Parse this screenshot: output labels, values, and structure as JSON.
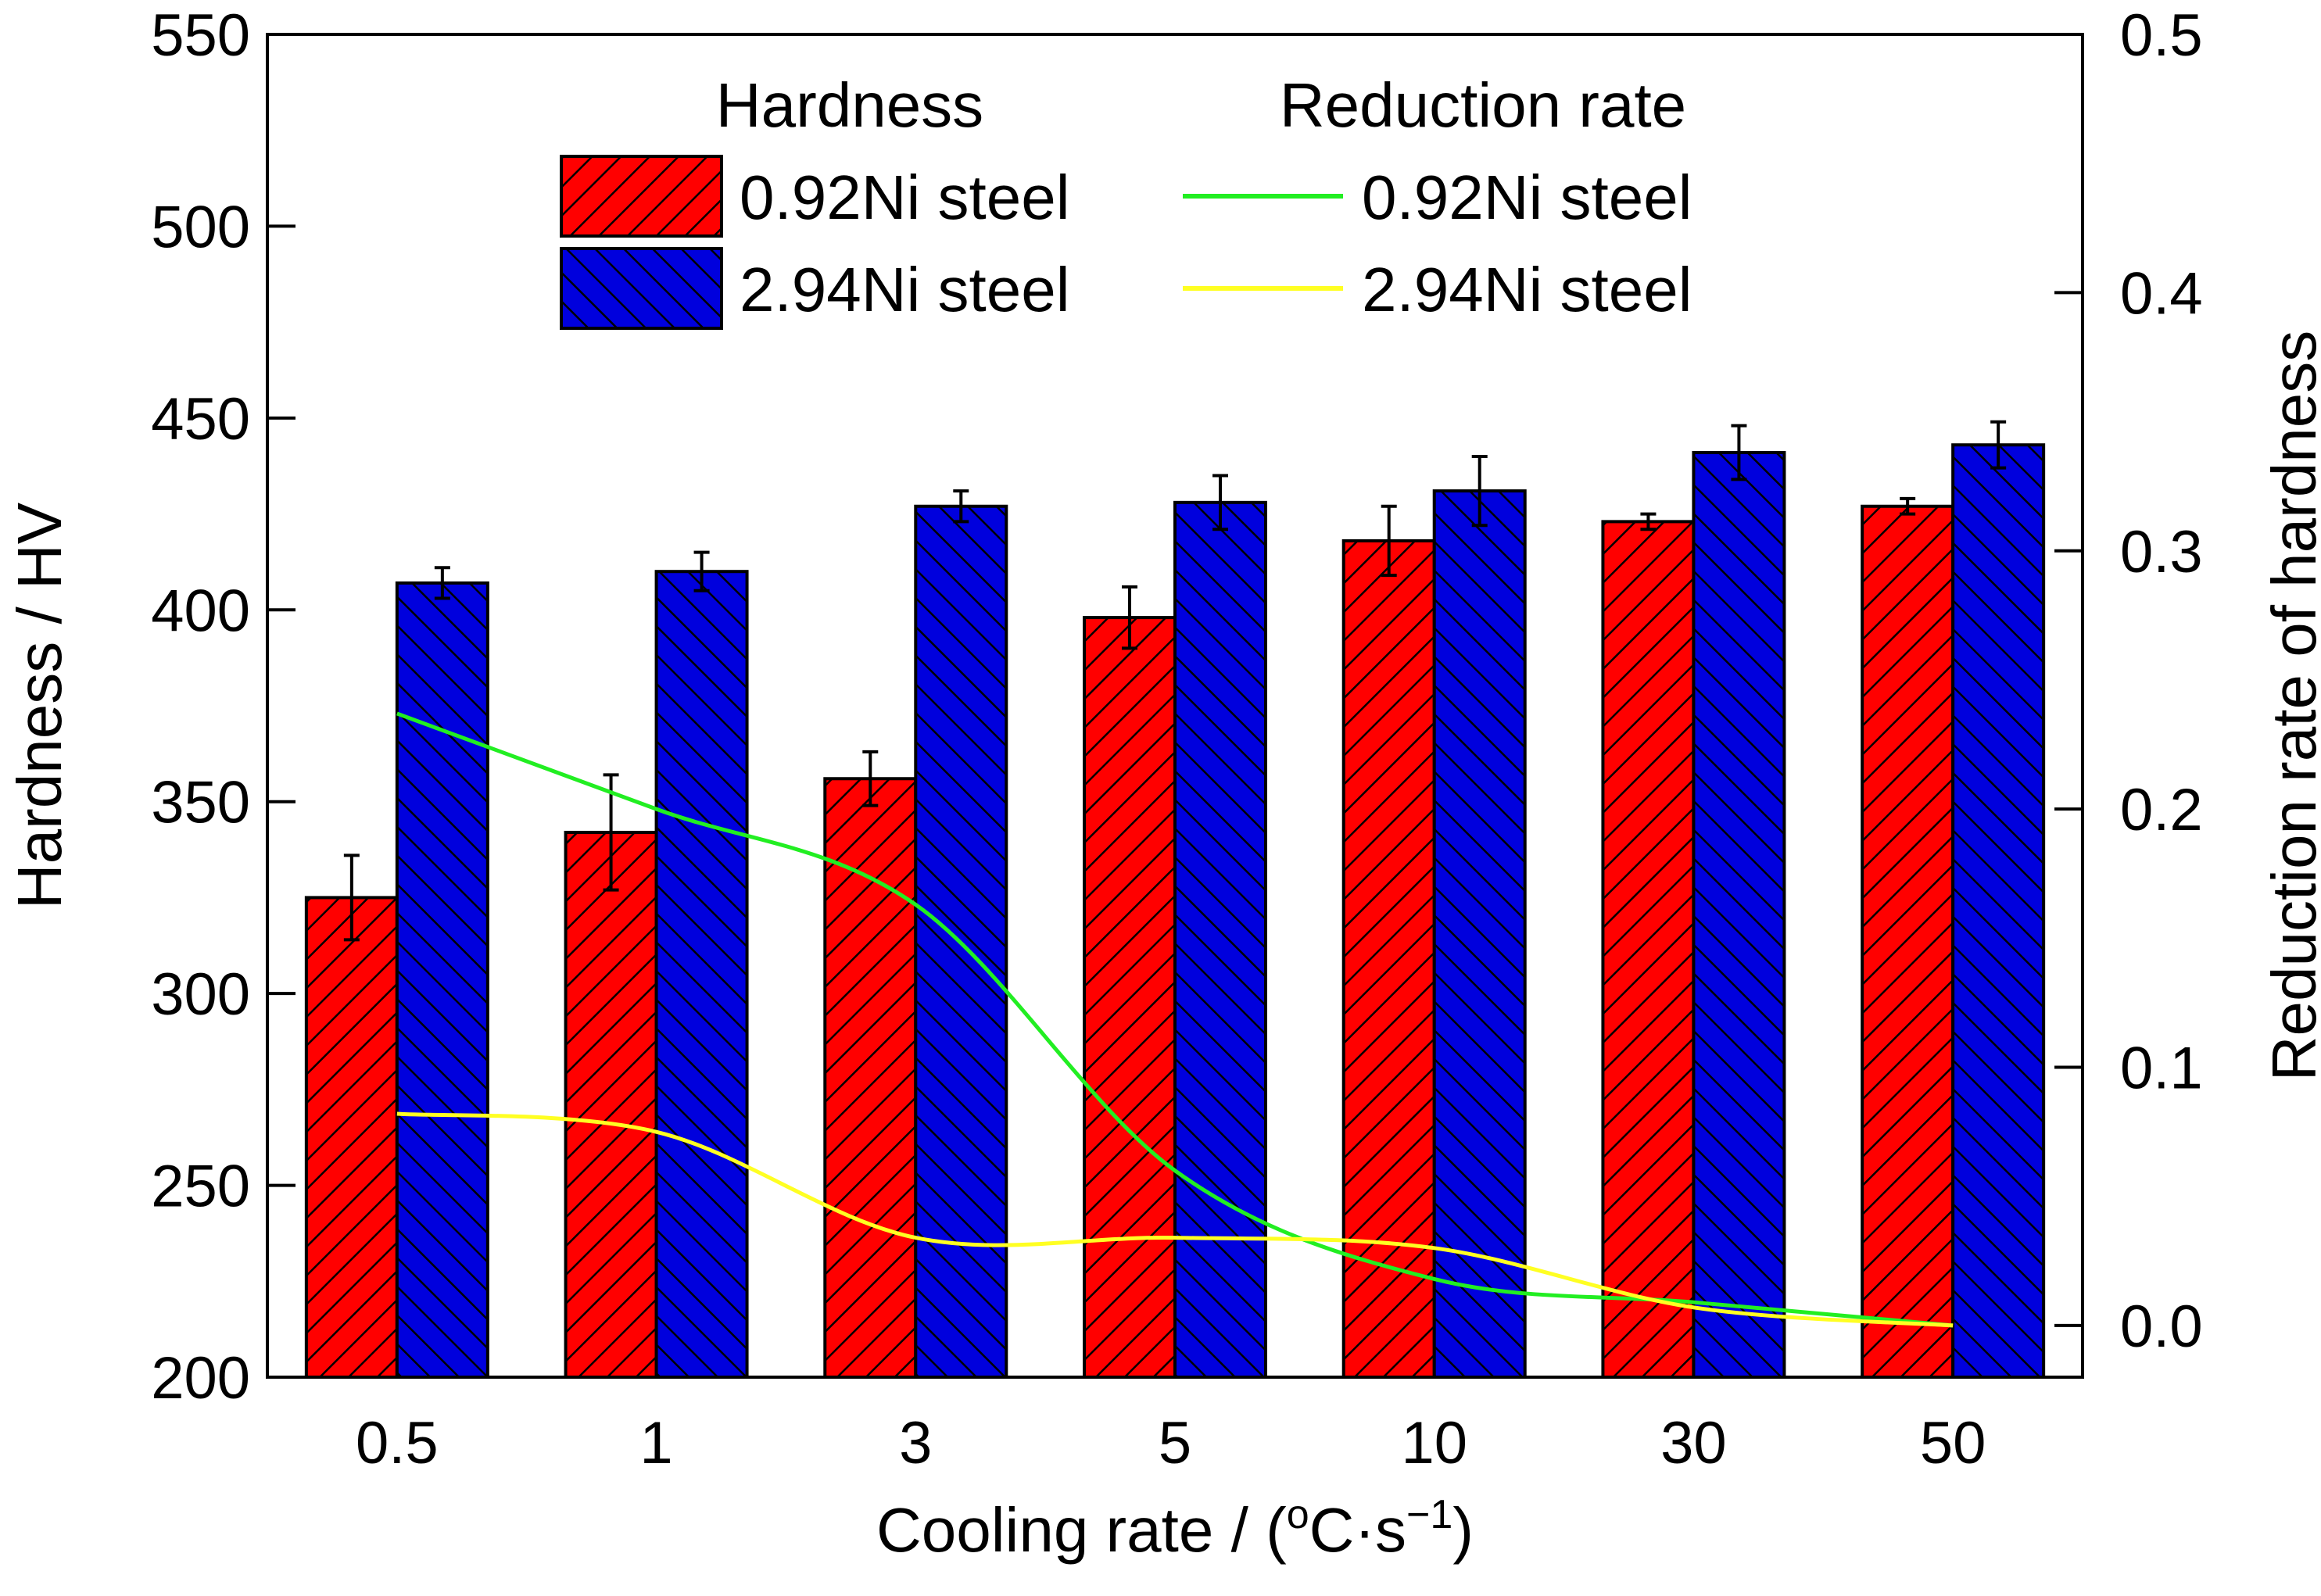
{
  "chart_data": {
    "type": "bar",
    "xlabel": {
      "prefix": "Cooling rate / (",
      "sup1": "o",
      "mid": "C·s",
      "sup2": "−1",
      "suffix": ")"
    },
    "ylabel_left": "Hardness / HV",
    "ylabel_right": "Reduction rate of hardness",
    "categories": [
      "0.5",
      "1",
      "3",
      "5",
      "10",
      "30",
      "50"
    ],
    "ylim_left": [
      200,
      550
    ],
    "yticks_left": [
      "200",
      "250",
      "300",
      "350",
      "400",
      "450",
      "500",
      "550"
    ],
    "ylim_right": [
      -0.02,
      0.5
    ],
    "yticks_right": [
      "0.0",
      "0.1",
      "0.2",
      "0.3",
      "0.4",
      "0.5"
    ],
    "bar_series": [
      {
        "name": "0.92Ni steel",
        "color": "#ff0000",
        "values": [
          325,
          342,
          356,
          398,
          418,
          423,
          427
        ],
        "errors": [
          11,
          15,
          7,
          8,
          9,
          2,
          2
        ]
      },
      {
        "name": "2.94Ni steel",
        "color": "#0000dd",
        "values": [
          407,
          410,
          427,
          428,
          431,
          441,
          443
        ],
        "errors": [
          4,
          5,
          4,
          7,
          9,
          7,
          6
        ]
      }
    ],
    "line_series": [
      {
        "name": "0.92Ni steel",
        "color": "#22ee22",
        "values": [
          0.237,
          0.2,
          0.163,
          0.06,
          0.018,
          0.009,
          0.0
        ]
      },
      {
        "name": "2.94Ni steel",
        "color": "#ffff22",
        "values": [
          0.082,
          0.075,
          0.034,
          0.034,
          0.03,
          0.007,
          0.0
        ]
      }
    ],
    "legend": {
      "position": "top-center",
      "bar_heading": "Hardness",
      "line_heading": "Reduction rate",
      "bar_labels": [
        "0.92Ni steel",
        "2.94Ni steel"
      ],
      "line_labels": [
        "0.92Ni steel",
        "2.94Ni steel"
      ]
    },
    "hatch": "diagonal",
    "grid": false
  }
}
